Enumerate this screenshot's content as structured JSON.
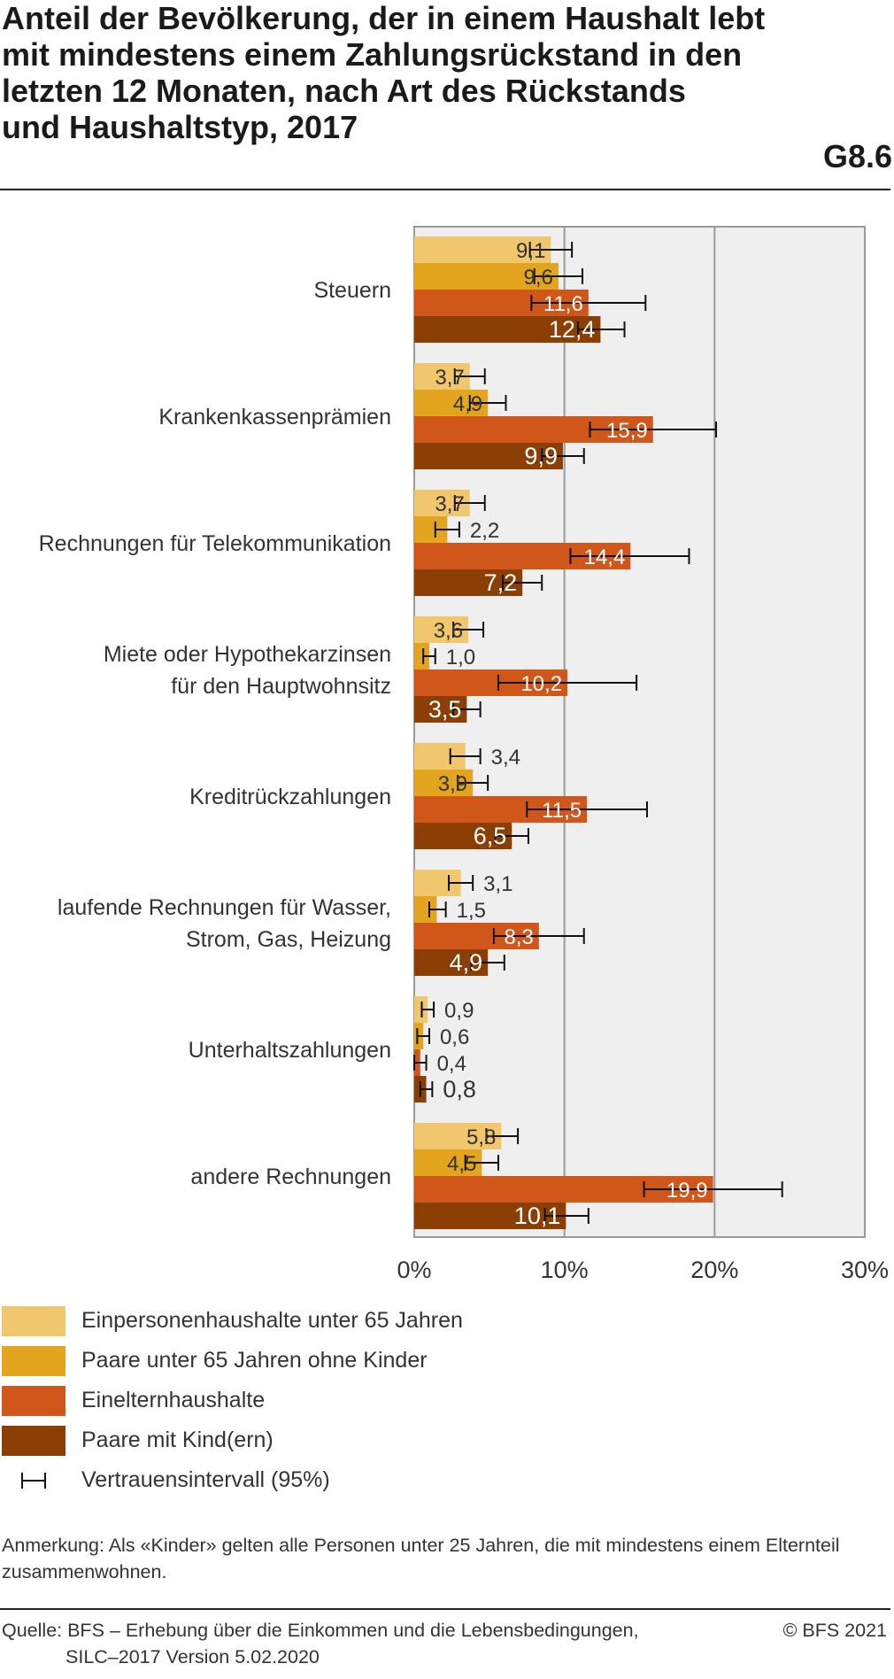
{
  "header": {
    "title_lines": [
      "Anteil der Bevölkerung, der in einem Haushalt lebt",
      "mit mindestens einem Zahlungsrückstand in den",
      "letzten 12 Monaten, nach Art des Rückstands",
      "und Haushaltstyp, 2017"
    ],
    "figure_code": "G8.6"
  },
  "chart_data": {
    "type": "bar",
    "orientation": "horizontal",
    "title": "Anteil der Bevölkerung, der in einem Haushalt lebt mit mindestens einem Zahlungsrückstand in den letzten 12 Monaten, nach Art des Rückstands und Haushaltstyp, 2017",
    "xlabel": "",
    "ylabel": "",
    "xlim": [
      0,
      30
    ],
    "x_ticks": [
      "0%",
      "10%",
      "20%",
      "30%"
    ],
    "grid": true,
    "legend_position": "bottom",
    "categories": [
      [
        "Steuern"
      ],
      [
        "Krankenkassenprämien"
      ],
      [
        "Rechnungen für Telekommunikation"
      ],
      [
        "Miete oder Hypothekarzinsen",
        "für den Hauptwohnsitz"
      ],
      [
        "Kreditrückzahlungen"
      ],
      [
        "laufende Rechnungen für Wasser,",
        "Strom, Gas, Heizung"
      ],
      [
        "Unterhaltszahlungen"
      ],
      [
        "andere Rechnungen"
      ]
    ],
    "series": [
      {
        "name": "Einpersonenhaushalte unter 65 Jahren",
        "color": "#f0c76d",
        "values": [
          9.1,
          3.7,
          3.7,
          3.6,
          3.4,
          3.1,
          0.9,
          5.8
        ],
        "labels": [
          "9,1",
          "3,7",
          "3,7",
          "3,6",
          "3,4",
          "3,1",
          "0,9",
          "5,8"
        ],
        "ci": [
          [
            7.7,
            10.5
          ],
          [
            2.7,
            4.7
          ],
          [
            2.7,
            4.7
          ],
          [
            2.6,
            4.6
          ],
          [
            2.4,
            4.4
          ],
          [
            2.3,
            3.9
          ],
          [
            0.5,
            1.3
          ],
          [
            4.8,
            6.9
          ]
        ]
      },
      {
        "name": "Paare unter 65 Jahren ohne Kinder",
        "color": "#e3a41e",
        "values": [
          9.6,
          4.9,
          2.2,
          1.0,
          3.9,
          1.5,
          0.6,
          4.5
        ],
        "labels": [
          "9,6",
          "4,9",
          "2,2",
          "1,0",
          "3,9",
          "1,5",
          "0,6",
          "4,5"
        ],
        "ci": [
          [
            8.0,
            11.2
          ],
          [
            3.7,
            6.1
          ],
          [
            1.4,
            3.0
          ],
          [
            0.6,
            1.4
          ],
          [
            2.9,
            4.9
          ],
          [
            1.0,
            2.1
          ],
          [
            0.2,
            1.0
          ],
          [
            3.4,
            5.6
          ]
        ]
      },
      {
        "name": "Einelternhaushalte",
        "color": "#d0561a",
        "values": [
          11.6,
          15.9,
          14.4,
          10.2,
          11.5,
          8.3,
          0.4,
          19.9
        ],
        "labels": [
          "11,6",
          "15,9",
          "14,4",
          "10,2",
          "11,5",
          "8,3",
          "0,4",
          "19,9"
        ],
        "ci": [
          [
            7.8,
            15.4
          ],
          [
            11.7,
            20.1
          ],
          [
            10.4,
            18.3
          ],
          [
            5.6,
            14.8
          ],
          [
            7.5,
            15.5
          ],
          [
            5.3,
            11.3
          ],
          [
            0.0,
            0.8
          ],
          [
            15.3,
            24.5
          ]
        ]
      },
      {
        "name": "Paare mit Kind(ern)",
        "color": "#8c3f05",
        "values": [
          12.4,
          9.9,
          7.2,
          3.5,
          6.5,
          4.9,
          0.8,
          10.1
        ],
        "labels": [
          "12,4",
          "9,9",
          "7,2",
          "3,5",
          "6,5",
          "4,9",
          "0,8",
          "10,1"
        ],
        "ci": [
          [
            10.9,
            14.0
          ],
          [
            8.5,
            11.3
          ],
          [
            5.9,
            8.5
          ],
          [
            2.6,
            4.4
          ],
          [
            5.4,
            7.6
          ],
          [
            3.8,
            6.0
          ],
          [
            0.4,
            1.2
          ],
          [
            8.7,
            11.6
          ]
        ]
      }
    ]
  },
  "legend": {
    "items": [
      {
        "label": "Einpersonenhaushalte unter 65 Jahren",
        "color": "#f0c76d"
      },
      {
        "label": "Paare unter 65 Jahren ohne Kinder",
        "color": "#e3a41e"
      },
      {
        "label": "Einelternhaushalte",
        "color": "#d0561a"
      },
      {
        "label": "Paare mit Kind(ern)",
        "color": "#8c3f05"
      }
    ],
    "ci_label": "Vertrauensintervall (95%)"
  },
  "note": "Anmerkung: Als «Kinder» gelten alle Personen unter 25 Jahren, die mit mindestens einem Elternteil zusammenwohnen.",
  "source": {
    "line1": "Quelle: BFS – Erhebung über die Einkommen und die Lebensbedingungen,",
    "line2": "SILC–2017 Version 5.02.2020"
  },
  "copyright": "© BFS 2021"
}
